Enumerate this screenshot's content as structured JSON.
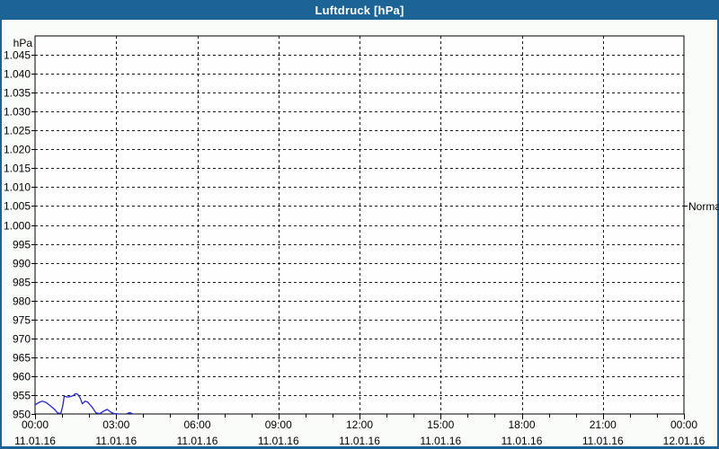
{
  "window": {
    "title": "Luftdruck [hPa]"
  },
  "colors": {
    "titlebar": "#1C6496",
    "window_border": "#1C6496",
    "background": "#FAFCFA",
    "plot_background": "#FDFEFD",
    "grid": "#1a1a1a",
    "axis": "#000000",
    "text": "#000000",
    "title_text": "#FFFFFF"
  },
  "chart_data": {
    "type": "line",
    "title": "Luftdruck [hPa]",
    "y_unit": "hPa",
    "xlabel": "",
    "ylabel": "hPa",
    "ylim": [
      950,
      1050
    ],
    "xlim_hours": [
      0,
      24
    ],
    "grid": "dashed",
    "legend_position": "none",
    "yticks": [
      {
        "v": 1045,
        "label": "1.045"
      },
      {
        "v": 1040,
        "label": "1.040"
      },
      {
        "v": 1035,
        "label": "1.035"
      },
      {
        "v": 1030,
        "label": "1.030"
      },
      {
        "v": 1025,
        "label": "1.025"
      },
      {
        "v": 1020,
        "label": "1.020"
      },
      {
        "v": 1015,
        "label": "1.015"
      },
      {
        "v": 1010,
        "label": "1.010"
      },
      {
        "v": 1005,
        "label": "1.005"
      },
      {
        "v": 1000,
        "label": "1.000"
      },
      {
        "v": 995,
        "label": "995"
      },
      {
        "v": 990,
        "label": "990"
      },
      {
        "v": 985,
        "label": "985"
      },
      {
        "v": 980,
        "label": "980"
      },
      {
        "v": 975,
        "label": "975"
      },
      {
        "v": 970,
        "label": "970"
      },
      {
        "v": 965,
        "label": "965"
      },
      {
        "v": 960,
        "label": "960"
      },
      {
        "v": 955,
        "label": "955"
      },
      {
        "v": 950,
        "label": "950"
      }
    ],
    "xticks": [
      {
        "h": 0,
        "time": "00:00",
        "date": "11.01.16"
      },
      {
        "h": 3,
        "time": "03:00",
        "date": "11.01.16"
      },
      {
        "h": 6,
        "time": "06:00",
        "date": "11.01.16"
      },
      {
        "h": 9,
        "time": "09:00",
        "date": "11.01.16"
      },
      {
        "h": 12,
        "time": "12:00",
        "date": "11.01.16"
      },
      {
        "h": 15,
        "time": "15:00",
        "date": "11.01.16"
      },
      {
        "h": 18,
        "time": "18:00",
        "date": "11.01.16"
      },
      {
        "h": 21,
        "time": "21:00",
        "date": "11.01.16"
      },
      {
        "h": 24,
        "time": "00:00",
        "date": "12.01.16"
      }
    ],
    "minor_tick_every_hours": 1,
    "major_tick_every_hours": 3,
    "annotations": [
      {
        "label": "Normal",
        "value": 1005,
        "side": "right"
      }
    ],
    "series": [
      {
        "name": "Luftdruck",
        "unit": "hPa",
        "color": "#2424CC",
        "segments": [
          [
            [
              0.0,
              952.4
            ],
            [
              0.13,
              953.0
            ],
            [
              0.27,
              953.4
            ],
            [
              0.42,
              953.0
            ],
            [
              0.58,
              952.1
            ],
            [
              0.72,
              951.2
            ],
            [
              0.83,
              950.3
            ],
            [
              0.95,
              950.1
            ],
            [
              1.02,
              952.0
            ],
            [
              1.08,
              954.7
            ],
            [
              1.2,
              954.5
            ],
            [
              1.32,
              954.6
            ],
            [
              1.42,
              954.9
            ],
            [
              1.5,
              955.4
            ],
            [
              1.58,
              955.2
            ],
            [
              1.67,
              954.2
            ],
            [
              1.75,
              952.7
            ],
            [
              1.85,
              953.4
            ],
            [
              1.95,
              953.1
            ],
            [
              2.1,
              951.9
            ],
            [
              2.25,
              950.3
            ],
            [
              2.4,
              950.1
            ],
            [
              2.55,
              950.8
            ],
            [
              2.67,
              951.2
            ],
            [
              2.8,
              950.5
            ],
            [
              2.92,
              950.1
            ],
            [
              3.1,
              950.0
            ]
          ],
          [
            [
              3.4,
              950.1
            ],
            [
              3.5,
              950.35
            ],
            [
              3.62,
              950.05
            ]
          ]
        ]
      }
    ]
  }
}
